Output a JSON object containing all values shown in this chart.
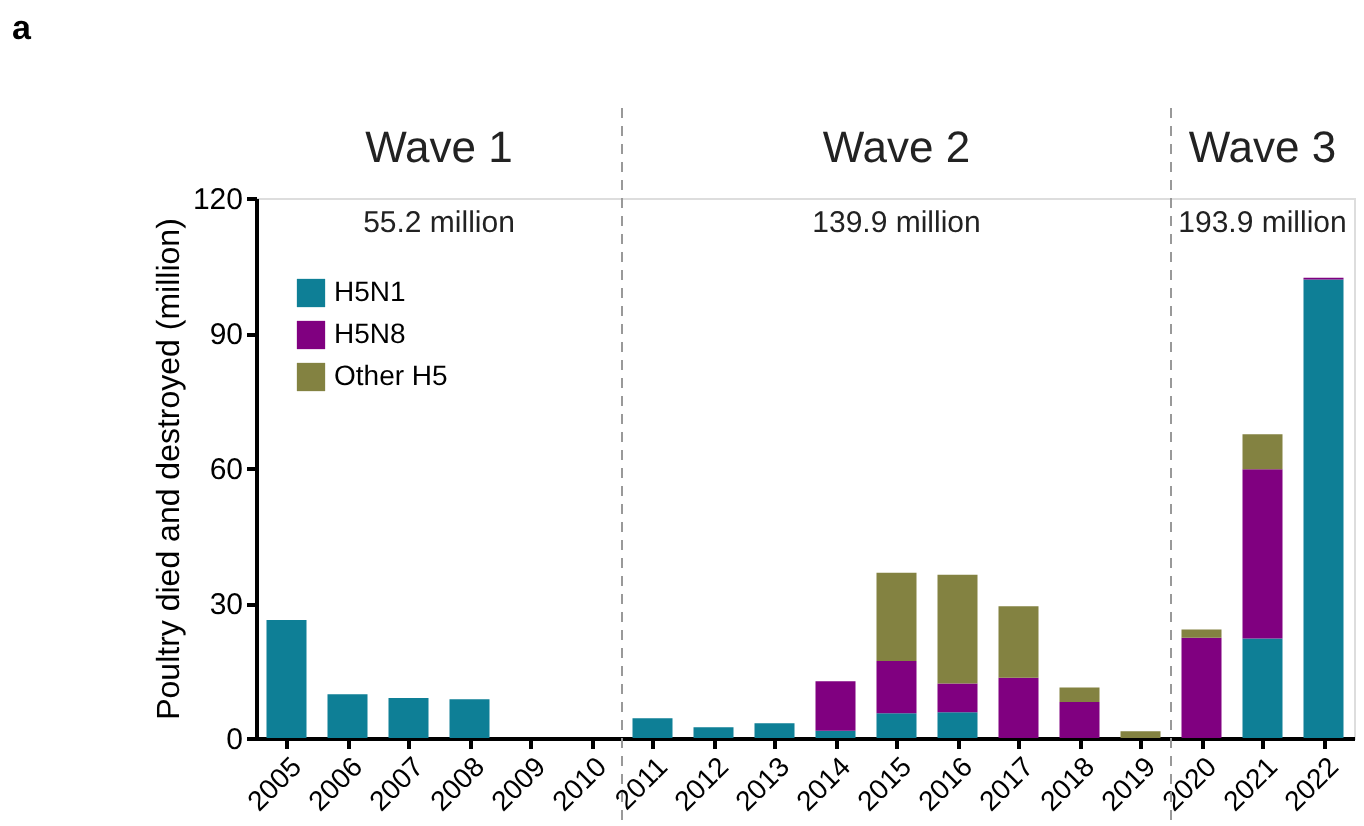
{
  "chart_data": {
    "type": "bar",
    "title": "a",
    "ylabel": "Poultry died and destroyed (million)",
    "stacked": true,
    "x": [
      2005,
      2006,
      2007,
      2008,
      2009,
      2010,
      2011,
      2012,
      2013,
      2014,
      2015,
      2016,
      2017,
      2018,
      2019,
      2020,
      2021,
      2022
    ],
    "xlim": [
      2004.5,
      2022.5
    ],
    "xticks": [
      2005,
      2006,
      2007,
      2008,
      2009,
      2010,
      2011,
      2012,
      2013,
      2014,
      2015,
      2016,
      2017,
      2018,
      2019,
      2020,
      2021,
      2022
    ],
    "ylim": [
      0,
      120
    ],
    "yticks": [
      0,
      30,
      60,
      90,
      120
    ],
    "grid": false,
    "legend": "top left",
    "series": [
      {
        "name": "H5N1",
        "color": "#0e7f96",
        "values": [
          26.2,
          9.7,
          8.9,
          8.6,
          0,
          0,
          4.4,
          2.4,
          3.3,
          1.6,
          5.5,
          5.7,
          0,
          0,
          0,
          0,
          22.1,
          101.9
        ]
      },
      {
        "name": "H5N8",
        "color": "#800080",
        "values": [
          0,
          0,
          0,
          0,
          0,
          0,
          0,
          0,
          0,
          11.0,
          11.6,
          6.4,
          13.4,
          8.0,
          0,
          22.3,
          37.6,
          0.4
        ]
      },
      {
        "name": "Other H5",
        "color": "#838241",
        "values": [
          0,
          0,
          0,
          0,
          0,
          0,
          0,
          0,
          0,
          0,
          19.6,
          24.2,
          15.9,
          3.2,
          1.5,
          1.8,
          7.8,
          0
        ]
      }
    ],
    "ref_lines": [
      {
        "axis": "x",
        "value": 2010.5,
        "color": "#999999",
        "line_style": "dashed"
      },
      {
        "axis": "x",
        "value": 2019.5,
        "color": "#999999",
        "line_style": "dashed"
      }
    ],
    "annotations": [
      "Wave 1",
      "Wave 2",
      "Wave 3",
      "55.2 million",
      "139.9 million",
      "193.9 million"
    ]
  }
}
